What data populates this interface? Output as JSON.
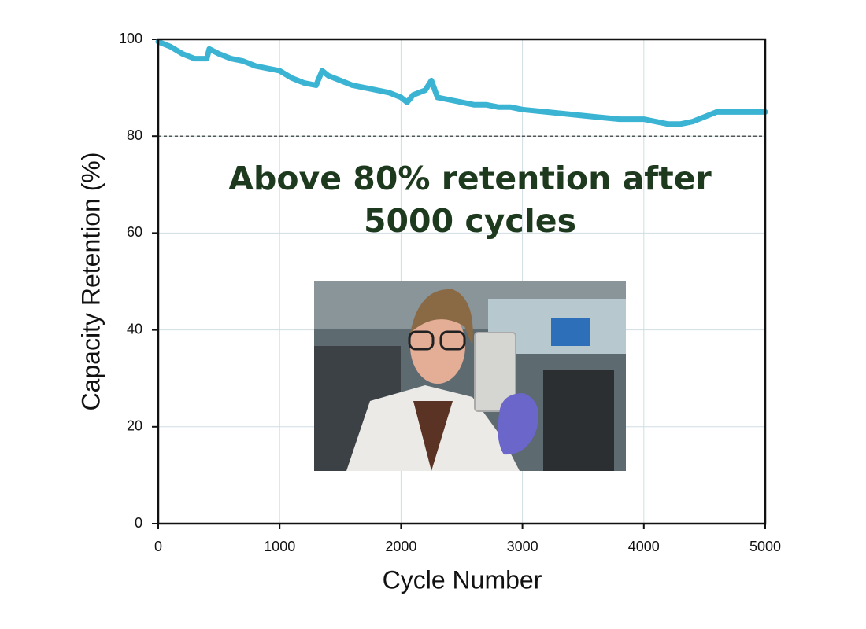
{
  "chart_data": {
    "type": "line",
    "xlabel": "Cycle Number",
    "ylabel": "Capacity Retention (%)",
    "annotation": [
      "Above 80% retention after",
      "5000 cycles"
    ],
    "x": [
      0,
      100,
      200,
      300,
      400,
      420,
      500,
      600,
      700,
      800,
      900,
      1000,
      1100,
      1200,
      1300,
      1350,
      1400,
      1500,
      1600,
      1700,
      1800,
      1900,
      2000,
      2050,
      2100,
      2200,
      2250,
      2300,
      2400,
      2500,
      2600,
      2700,
      2800,
      2900,
      3000,
      3200,
      3400,
      3600,
      3800,
      4000,
      4200,
      4300,
      4400,
      4500,
      4600,
      4800,
      5000
    ],
    "series": [
      {
        "name": "Capacity Retention",
        "color": "#3bb4d4",
        "values": [
          99.5,
          98.5,
          97,
          96,
          96,
          98,
          97,
          96,
          95.5,
          94.5,
          94,
          93.5,
          92,
          91,
          90.5,
          93.5,
          92.5,
          91.5,
          90.5,
          90,
          89.5,
          89,
          88,
          87,
          88.5,
          89.5,
          91.5,
          88,
          87.5,
          87,
          86.5,
          86.5,
          86,
          86,
          85.5,
          85,
          84.5,
          84,
          83.5,
          83.5,
          82.5,
          82.5,
          83,
          84,
          85,
          85,
          85
        ]
      }
    ],
    "hline": 80,
    "xlim": [
      0,
      5000
    ],
    "xticks": [
      0,
      1000,
      2000,
      3000,
      4000,
      5000
    ],
    "ylim": [
      0,
      100
    ],
    "yticks": [
      0,
      20,
      40,
      60,
      80,
      100
    ],
    "grid": true
  }
}
